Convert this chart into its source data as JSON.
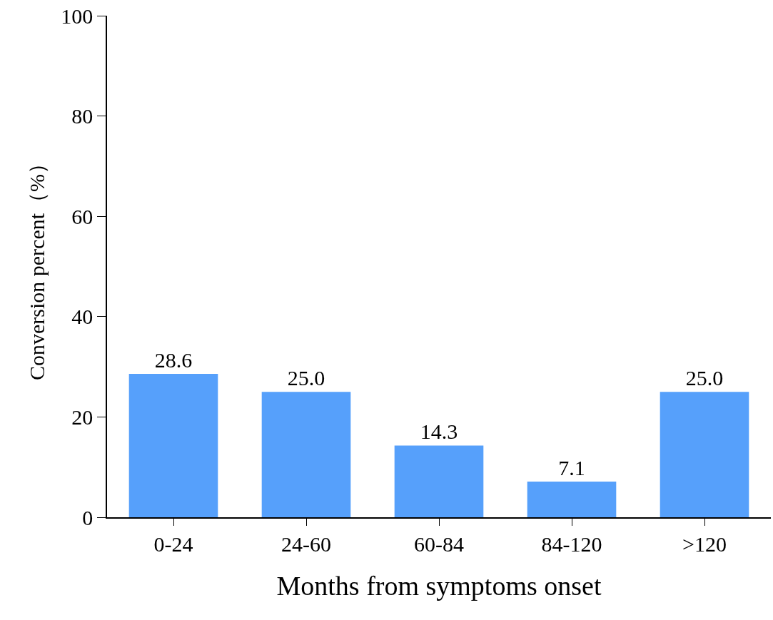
{
  "chart_data": {
    "type": "bar",
    "xlabel": "Months from symptoms onset",
    "ylabel": "Conversion percent（%）",
    "categories": [
      "0-24",
      "24-60",
      "60-84",
      "84-120",
      ">120"
    ],
    "values": [
      28.6,
      25.0,
      14.3,
      7.1,
      25.0
    ],
    "value_labels": [
      "28.6",
      "25.0",
      "14.3",
      "7.1",
      "25.0"
    ],
    "color": "#56a0fb",
    "ylim": [
      0,
      100
    ],
    "yticks": [
      0,
      20,
      40,
      60,
      80,
      100
    ],
    "grid": false
  }
}
